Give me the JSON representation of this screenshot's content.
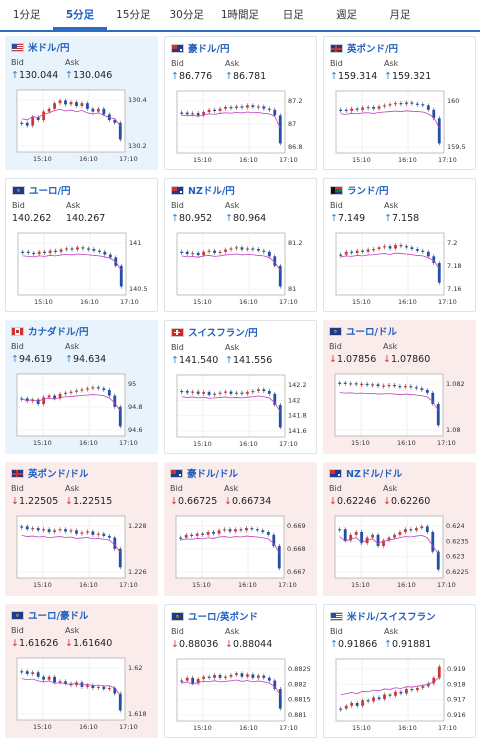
{
  "tabs": [
    {
      "label": "1分足",
      "active": false
    },
    {
      "label": "5分足",
      "active": true
    },
    {
      "label": "15分足",
      "active": false
    },
    {
      "label": "30分足",
      "active": false
    },
    {
      "label": "1時間足",
      "active": false
    },
    {
      "label": "日足",
      "active": false
    },
    {
      "label": "週足",
      "active": false
    },
    {
      "label": "月足",
      "active": false
    }
  ],
  "bid_label": "Bid",
  "ask_label": "Ask",
  "cards": [
    {
      "pair": "米ドル/円",
      "flag": "us",
      "dir": "up",
      "bg": "up",
      "bid": "130.044",
      "ask": "130.046",
      "ticks": [
        "130.4",
        "130.2"
      ],
      "x_ticks": [
        "15:10",
        "16:10",
        "17:10"
      ],
      "trend": [
        0.55,
        0.6,
        0.45,
        0.5,
        0.35,
        0.3,
        0.2,
        0.15,
        0.22,
        0.18,
        0.25,
        0.2,
        0.3,
        0.35,
        0.3,
        0.4,
        0.5,
        0.55,
        0.85
      ]
    },
    {
      "pair": "豪ドル/円",
      "flag": "au",
      "dir": "up",
      "bg": "white",
      "bid": "86.776",
      "ask": "86.781",
      "ticks": [
        "87.2",
        "87",
        "86.8"
      ],
      "x_ticks": [
        "15:10",
        "16:10",
        "17:10"
      ],
      "trend": [
        0.35,
        0.38,
        0.36,
        0.4,
        0.34,
        0.3,
        0.32,
        0.28,
        0.25,
        0.27,
        0.24,
        0.26,
        0.22,
        0.25,
        0.24,
        0.28,
        0.3,
        0.4,
        0.9
      ]
    },
    {
      "pair": "英ポンド/円",
      "flag": "gb",
      "dir": "up",
      "bg": "white",
      "bid": "159.314",
      "ask": "159.321",
      "ticks": [
        "160",
        "159.5"
      ],
      "x_ticks": [
        "15:10",
        "16:10",
        "17:10"
      ],
      "trend": [
        0.3,
        0.32,
        0.28,
        0.3,
        0.26,
        0.25,
        0.28,
        0.24,
        0.22,
        0.2,
        0.18,
        0.2,
        0.17,
        0.19,
        0.2,
        0.22,
        0.3,
        0.45,
        0.9
      ]
    },
    {
      "pair": "ユーロ/円",
      "flag": "eu",
      "dir": "none",
      "bg": "white",
      "bid": "140.262",
      "ask": "140.267",
      "ticks": [
        "141",
        "140.5"
      ],
      "x_ticks": [
        "15:10",
        "16:10",
        "17:10"
      ],
      "trend": [
        0.3,
        0.32,
        0.34,
        0.3,
        0.32,
        0.28,
        0.3,
        0.26,
        0.24,
        0.26,
        0.22,
        0.24,
        0.25,
        0.28,
        0.3,
        0.35,
        0.4,
        0.55,
        0.92
      ]
    },
    {
      "pair": "NZドル/円",
      "flag": "nz",
      "dir": "up",
      "bg": "white",
      "bid": "80.952",
      "ask": "80.964",
      "ticks": [
        "81.2",
        "81"
      ],
      "x_ticks": [
        "15:10",
        "16:10",
        "17:10"
      ],
      "trend": [
        0.3,
        0.34,
        0.32,
        0.36,
        0.3,
        0.28,
        0.32,
        0.3,
        0.26,
        0.24,
        0.22,
        0.26,
        0.24,
        0.25,
        0.28,
        0.3,
        0.38,
        0.55,
        0.92
      ]
    },
    {
      "pair": "ランド/円",
      "flag": "za",
      "dir": "up",
      "bg": "white",
      "bid": "7.149",
      "ask": "7.158",
      "ticks": [
        "7.2",
        "7.18",
        "7.16"
      ],
      "x_ticks": [
        "15:10",
        "16:10",
        "17:10"
      ],
      "trend": [
        0.35,
        0.3,
        0.32,
        0.28,
        0.3,
        0.26,
        0.25,
        0.22,
        0.2,
        0.24,
        0.18,
        0.2,
        0.22,
        0.25,
        0.28,
        0.3,
        0.38,
        0.5,
        0.85
      ]
    },
    {
      "pair": "カナダドル/円",
      "flag": "ca",
      "dir": "up",
      "bg": "up",
      "bid": "94.619",
      "ask": "94.634",
      "ticks": [
        "95",
        "94.8",
        "94.6"
      ],
      "x_ticks": [
        "15:10",
        "16:10",
        "17:10"
      ],
      "trend": [
        0.4,
        0.45,
        0.42,
        0.5,
        0.38,
        0.35,
        0.4,
        0.32,
        0.3,
        0.28,
        0.26,
        0.24,
        0.22,
        0.2,
        0.22,
        0.25,
        0.35,
        0.55,
        0.9
      ]
    },
    {
      "pair": "スイスフラン/円",
      "flag": "ch",
      "dir": "up",
      "bg": "white",
      "bid": "141.540",
      "ask": "141.556",
      "ticks": [
        "142.2",
        "142",
        "141.8",
        "141.6"
      ],
      "x_ticks": [
        "15:10",
        "16:10",
        "17:10"
      ],
      "trend": [
        0.25,
        0.28,
        0.26,
        0.3,
        0.27,
        0.32,
        0.3,
        0.28,
        0.26,
        0.3,
        0.28,
        0.3,
        0.27,
        0.25,
        0.22,
        0.25,
        0.3,
        0.5,
        0.9
      ]
    },
    {
      "pair": "ユーロ/ドル",
      "flag": "eu",
      "dir": "down",
      "bg": "down",
      "bid": "1.07856",
      "ask": "1.07860",
      "ticks": [
        "1.082",
        "1.08"
      ],
      "x_ticks": [
        "15:10",
        "16:10",
        "17:10"
      ],
      "trend": [
        0.12,
        0.14,
        0.13,
        0.15,
        0.14,
        0.16,
        0.15,
        0.18,
        0.17,
        0.16,
        0.18,
        0.2,
        0.18,
        0.2,
        0.22,
        0.25,
        0.3,
        0.5,
        0.88
      ]
    },
    {
      "pair": "英ポンド/ドル",
      "flag": "gb",
      "dir": "down",
      "bg": "down",
      "bid": "1.22505",
      "ask": "1.22515",
      "ticks": [
        "1.228",
        "1.226"
      ],
      "x_ticks": [
        "15:10",
        "16:10",
        "17:10"
      ],
      "trend": [
        0.15,
        0.2,
        0.18,
        0.22,
        0.2,
        0.25,
        0.22,
        0.2,
        0.24,
        0.22,
        0.28,
        0.26,
        0.24,
        0.3,
        0.28,
        0.32,
        0.35,
        0.55,
        0.88
      ]
    },
    {
      "pair": "豪ドル/ドル",
      "flag": "au",
      "dir": "down",
      "bg": "down",
      "bid": "0.66725",
      "ask": "0.66734",
      "ticks": [
        "0.669",
        "0.668",
        "0.667"
      ],
      "x_ticks": [
        "15:10",
        "16:10",
        "17:10"
      ],
      "trend": [
        0.35,
        0.3,
        0.32,
        0.28,
        0.3,
        0.25,
        0.28,
        0.22,
        0.2,
        0.24,
        0.2,
        0.22,
        0.18,
        0.2,
        0.22,
        0.25,
        0.3,
        0.5,
        0.9
      ]
    },
    {
      "pair": "NZドル/ドル",
      "flag": "nz",
      "dir": "down",
      "bg": "down",
      "bid": "0.62246",
      "ask": "0.62260",
      "ticks": [
        "0.624",
        "0.6235",
        "0.623",
        "0.6225"
      ],
      "x_ticks": [
        "15:10",
        "16:10",
        "17:10"
      ],
      "trend": [
        0.2,
        0.4,
        0.3,
        0.25,
        0.45,
        0.35,
        0.3,
        0.5,
        0.4,
        0.35,
        0.3,
        0.25,
        0.2,
        0.22,
        0.18,
        0.15,
        0.25,
        0.6,
        0.92
      ]
    },
    {
      "pair": "ユーロ/豪ドル",
      "flag": "eu",
      "dir": "down",
      "bg": "down",
      "bid": "1.61626",
      "ask": "1.61640",
      "ticks": [
        "1.62",
        "1.618"
      ],
      "x_ticks": [
        "15:10",
        "16:10",
        "17:10"
      ],
      "trend": [
        0.2,
        0.25,
        0.22,
        0.3,
        0.35,
        0.3,
        0.4,
        0.38,
        0.42,
        0.45,
        0.4,
        0.48,
        0.45,
        0.5,
        0.48,
        0.52,
        0.5,
        0.6,
        0.9
      ]
    },
    {
      "pair": "ユーロ/英ポンド",
      "flag": "eu",
      "dir": "down",
      "bg": "white",
      "bid": "0.88036",
      "ask": "0.88044",
      "ticks": [
        "0.8825",
        "0.882",
        "0.8815",
        "0.881"
      ],
      "x_ticks": [
        "15:10",
        "16:10",
        "17:10"
      ],
      "trend": [
        0.35,
        0.3,
        0.4,
        0.32,
        0.28,
        0.3,
        0.25,
        0.3,
        0.28,
        0.25,
        0.22,
        0.28,
        0.24,
        0.3,
        0.26,
        0.3,
        0.35,
        0.5,
        0.85
      ]
    },
    {
      "pair": "米ドル/スイスフラン",
      "flag": "us",
      "dir": "up",
      "bg": "white",
      "bid": "0.91866",
      "ask": "0.91881",
      "ticks": [
        "0.919",
        "0.918",
        "0.917",
        "0.916"
      ],
      "x_ticks": [
        "15:10",
        "16:10",
        "17:10"
      ],
      "trend": [
        0.85,
        0.8,
        0.75,
        0.8,
        0.7,
        0.72,
        0.65,
        0.68,
        0.6,
        0.62,
        0.55,
        0.58,
        0.5,
        0.52,
        0.48,
        0.45,
        0.4,
        0.3,
        0.1
      ]
    }
  ],
  "colors": {
    "accent": "#2b6cc4",
    "up": "#2a7fd0",
    "down": "#d23434",
    "bull": "#d23434",
    "bear": "#1f4fa8",
    "ma": "#c040c0"
  }
}
